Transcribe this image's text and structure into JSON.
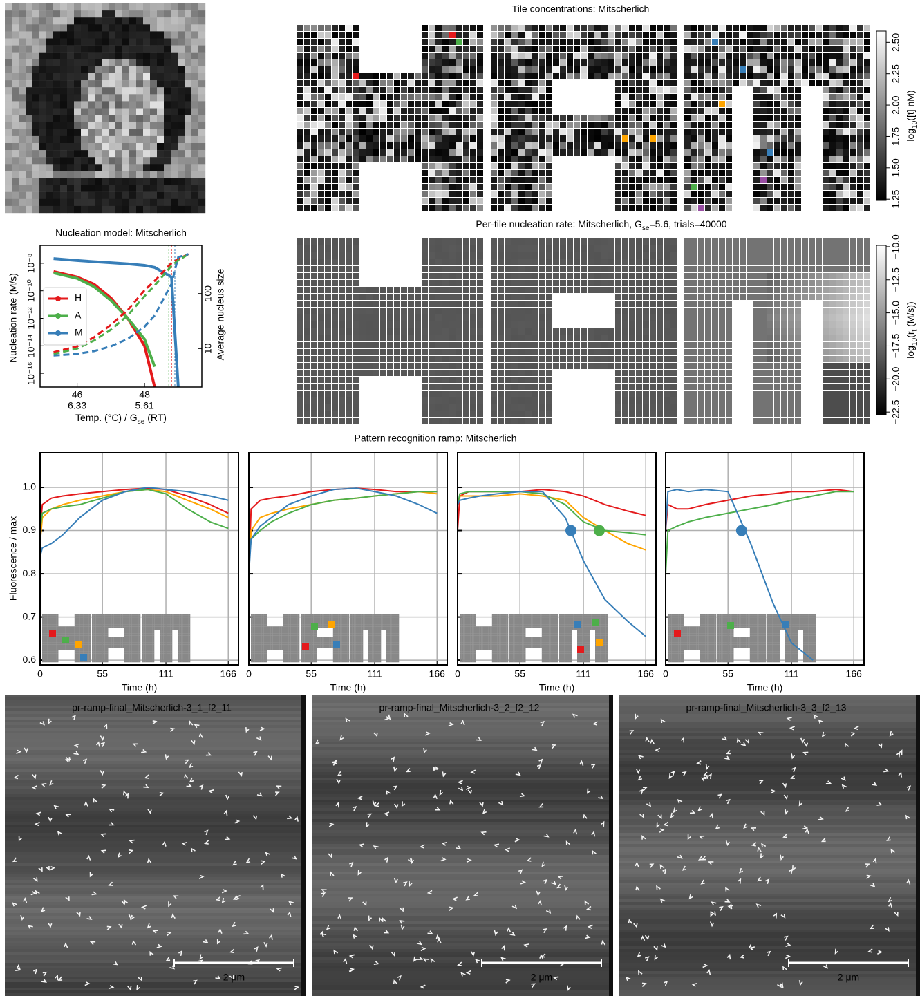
{
  "tile_concentrations": {
    "title": "Tile concentrations: Mitscherlich",
    "colorbar": {
      "label": [
        "log",
        "10",
        "([t] nM)"
      ],
      "clim": [
        1.24,
        2.59
      ],
      "ticks": [
        1.25,
        {
          "value": 1.5,
          "label": "1.50"
        },
        1.75,
        {
          "value": 2,
          "label": "2.00"
        },
        2.25,
        {
          "value": 2.5,
          "label": "2.50"
        }
      ]
    }
  },
  "nucleation_rate": {
    "title": [
      "Per-tile nucleation rate: Mitscherlich, G",
      "se",
      "=5.6, trials=40000"
    ],
    "colorbar": {
      "label": [
        "log",
        "10",
        "(r",
        "t",
        " (M/s))"
      ],
      "clim": [
        -22.7,
        -9.9
      ],
      "ticks": [
        {
          "value": -22.5,
          "label": "−22.5"
        },
        {
          "value": -20,
          "label": "−20.0"
        },
        {
          "value": -17.5,
          "label": "−17.5"
        },
        {
          "value": -15,
          "label": "−15.0"
        },
        {
          "value": -12.5,
          "label": "−12.5"
        },
        {
          "value": -10,
          "label": "−10.0"
        }
      ]
    }
  },
  "ramp_title": "Pattern recognition ramp: Mitscherlich",
  "chart_data": [
    {
      "type": "line",
      "title": "Nucleation model: Mitscherlich",
      "xlabel": [
        "Temp. (°C) / G",
        "se",
        " (RT)"
      ],
      "ylabel": "Nucleation rate (M/s)",
      "y2label": "Average nucleus size",
      "x": [
        45.3,
        46,
        46.5,
        47,
        47.5,
        48,
        48.3,
        48.8,
        49.0,
        49.3
      ],
      "xlim": [
        44.9,
        49.7
      ],
      "xticks": [
        46,
        48
      ],
      "xtick_labels2": [
        "6.33",
        "5.61"
      ],
      "yscale": "log",
      "ylim": [
        1e-17,
        2e-07
      ],
      "yticks": [
        {
          "value": 1e-16,
          "label": "10⁻¹⁶"
        },
        {
          "value": 1e-14,
          "label": "10⁻¹⁴"
        },
        {
          "value": 1e-12,
          "label": "10⁻¹²"
        },
        {
          "value": 1e-10,
          "label": "10⁻¹⁰"
        },
        {
          "value": 1e-08,
          "label": "10⁻⁸"
        }
      ],
      "y2scale": "log",
      "y2lim": [
        2,
        750
      ],
      "y2ticks": [
        10,
        100
      ],
      "legend": "center left",
      "series": [
        {
          "name": "H",
          "color": "#e41a1c",
          "values": [
            2.5e-09,
            1e-09,
            3e-10,
            3e-11,
            1e-12,
            1e-14,
            1e-17,
            null,
            null,
            null
          ]
        },
        {
          "name": "A",
          "color": "#4daf4a",
          "values": [
            2e-09,
            8e-10,
            2e-10,
            2e-11,
            1e-12,
            3e-14,
            3e-16,
            null,
            null,
            null
          ]
        },
        {
          "name": "M",
          "color": "#377eb8",
          "values": [
            2.2e-08,
            1.6e-08,
            1.3e-08,
            1.1e-08,
            9e-09,
            7e-09,
            5e-09,
            1e-09,
            1e-17,
            null
          ]
        },
        {
          "color": "#e41a1c",
          "axis": "y2",
          "dashed": true,
          "values": [
            8.6,
            11,
            16,
            27,
            50,
            115,
            170,
            360,
            420,
            520
          ]
        },
        {
          "color": "#4daf4a",
          "axis": "y2",
          "dashed": true,
          "values": [
            8,
            10,
            14,
            22,
            40,
            90,
            140,
            320,
            400,
            520
          ]
        },
        {
          "color": "#377eb8",
          "axis": "y2",
          "dashed": true,
          "values": [
            7.5,
            8,
            9,
            11,
            15,
            25,
            40,
            150,
            460,
            520
          ]
        }
      ],
      "vlines": [
        {
          "x": 48.72,
          "color": "#4daf4a"
        },
        {
          "x": 48.8,
          "color": "#e41a1c"
        },
        {
          "x": 48.9,
          "color": "#377eb8"
        }
      ]
    },
    {
      "type": "line",
      "xlabel": "Time (h)",
      "ylabel": "Fluorescence / max",
      "ytick_labels": true,
      "grid": true,
      "x": [
        0,
        2,
        10,
        20,
        35,
        55,
        75,
        95,
        111,
        130,
        150,
        166
      ],
      "xlim": [
        0,
        175
      ],
      "xticks": [
        0,
        55,
        111,
        166
      ],
      "ylim": [
        0.589,
        1.08
      ],
      "yticks": [
        0.6,
        0.7,
        0.8,
        0.9,
        {
          "value": 1,
          "label": "1.0"
        }
      ],
      "series": [
        {
          "color": "#e41a1c",
          "values": [
            0.9,
            0.96,
            0.975,
            0.98,
            0.985,
            0.99,
            0.995,
            0.998,
            0.995,
            0.98,
            0.96,
            0.94
          ]
        },
        {
          "color": "#ffa500",
          "values": [
            0.87,
            0.93,
            0.95,
            0.96,
            0.97,
            0.98,
            0.99,
            0.995,
            0.99,
            0.97,
            0.95,
            0.93
          ]
        },
        {
          "color": "#4daf4a",
          "values": [
            0.9,
            0.94,
            0.95,
            0.955,
            0.96,
            0.975,
            0.99,
            0.995,
            0.985,
            0.95,
            0.92,
            0.905
          ]
        },
        {
          "color": "#377eb8",
          "values": [
            0.84,
            0.86,
            0.87,
            0.89,
            0.93,
            0.97,
            0.99,
            1.0,
            0.995,
            0.99,
            0.98,
            0.97
          ]
        }
      ],
      "markers": []
    },
    {
      "type": "line",
      "xlabel": "Time (h)",
      "ytick_labels": false,
      "grid": true,
      "x": [
        0,
        2,
        10,
        20,
        35,
        55,
        75,
        95,
        111,
        130,
        150,
        166
      ],
      "xlim": [
        0,
        175
      ],
      "xticks": [
        0,
        55,
        111,
        166
      ],
      "ylim": [
        0.589,
        1.08
      ],
      "yticks": [
        0.6,
        0.7,
        0.8,
        0.9,
        1
      ],
      "series": [
        {
          "color": "#e41a1c",
          "values": [
            0.8,
            0.95,
            0.97,
            0.975,
            0.98,
            0.99,
            0.995,
            0.998,
            0.995,
            0.99,
            0.99,
            0.99
          ]
        },
        {
          "color": "#ffa500",
          "values": [
            0.8,
            0.9,
            0.93,
            0.94,
            0.95,
            0.96,
            0.97,
            0.975,
            0.98,
            0.985,
            0.99,
            0.985
          ]
        },
        {
          "color": "#4daf4a",
          "values": [
            0.82,
            0.88,
            0.9,
            0.92,
            0.94,
            0.96,
            0.97,
            0.975,
            0.98,
            0.985,
            0.99,
            0.99
          ]
        },
        {
          "color": "#377eb8",
          "values": [
            0.8,
            0.88,
            0.91,
            0.93,
            0.96,
            0.98,
            0.995,
            0.998,
            0.99,
            0.98,
            0.96,
            0.94
          ]
        }
      ],
      "markers": []
    },
    {
      "type": "line",
      "xlabel": "Time (h)",
      "ytick_labels": false,
      "grid": true,
      "x": [
        0,
        2,
        10,
        20,
        35,
        55,
        75,
        95,
        111,
        130,
        150,
        166
      ],
      "xlim": [
        0,
        175
      ],
      "xticks": [
        0,
        55,
        111,
        166
      ],
      "ylim": [
        0.589,
        1.08
      ],
      "yticks": [
        0.6,
        0.7,
        0.8,
        0.9,
        1
      ],
      "series": [
        {
          "color": "#e41a1c",
          "values": [
            0.9,
            0.98,
            0.99,
            0.99,
            0.99,
            0.99,
            0.995,
            0.99,
            0.98,
            0.96,
            0.945,
            0.935
          ]
        },
        {
          "color": "#ffa500",
          "values": [
            0.96,
            0.98,
            0.98,
            0.98,
            0.98,
            0.985,
            0.98,
            0.97,
            0.93,
            0.9,
            0.87,
            0.855
          ]
        },
        {
          "color": "#4daf4a",
          "values": [
            0.96,
            0.985,
            0.99,
            0.99,
            0.99,
            0.99,
            0.985,
            0.96,
            0.92,
            0.9,
            0.895,
            0.89
          ]
        },
        {
          "color": "#377eb8",
          "values": [
            0.96,
            0.97,
            0.975,
            0.98,
            0.985,
            0.99,
            0.99,
            0.93,
            0.83,
            0.74,
            0.69,
            0.655
          ]
        }
      ],
      "markers": [
        {
          "x": 100,
          "y": 0.9,
          "color": "#377eb8"
        },
        {
          "x": 125,
          "y": 0.9,
          "color": "#4daf4a"
        }
      ]
    },
    {
      "type": "line",
      "xlabel": "Time (h)",
      "ytick_labels": false,
      "grid": true,
      "x": [
        0,
        2,
        10,
        20,
        35,
        55,
        75,
        95,
        111,
        130,
        150,
        166
      ],
      "xlim": [
        0,
        175
      ],
      "xticks": [
        0,
        55,
        111,
        166
      ],
      "ylim": [
        0.589,
        1.08
      ],
      "yticks": [
        0.6,
        0.7,
        0.8,
        0.9,
        1
      ],
      "series": [
        {
          "color": "#e41a1c",
          "values": [
            0.9,
            0.96,
            0.95,
            0.95,
            0.96,
            0.97,
            0.98,
            0.985,
            0.99,
            0.99,
            0.995,
            0.99
          ]
        },
        {
          "color": "#4daf4a",
          "values": [
            0.8,
            0.9,
            0.91,
            0.92,
            0.93,
            0.94,
            0.95,
            0.96,
            0.97,
            0.98,
            0.99,
            0.99
          ]
        },
        {
          "color": "#377eb8",
          "values": [
            0.9,
            0.99,
            0.995,
            0.99,
            0.995,
            0.99,
            0.87,
            0.73,
            0.64,
            0.6,
            null,
            null
          ]
        }
      ],
      "markers": [
        {
          "x": 67,
          "y": 0.9,
          "color": "#377eb8"
        }
      ]
    }
  ],
  "micrographs": [
    {
      "title": "pr-ramp-final_Mitscherlich-3_1_f2_11",
      "scale_label": "2 μm"
    },
    {
      "title": "pr-ramp-final_Mitscherlich-3_2_f2_12",
      "scale_label": "2 μm"
    },
    {
      "title": "pr-ramp-final_Mitscherlich-3_3_f2_13",
      "scale_label": "2 μm"
    }
  ]
}
